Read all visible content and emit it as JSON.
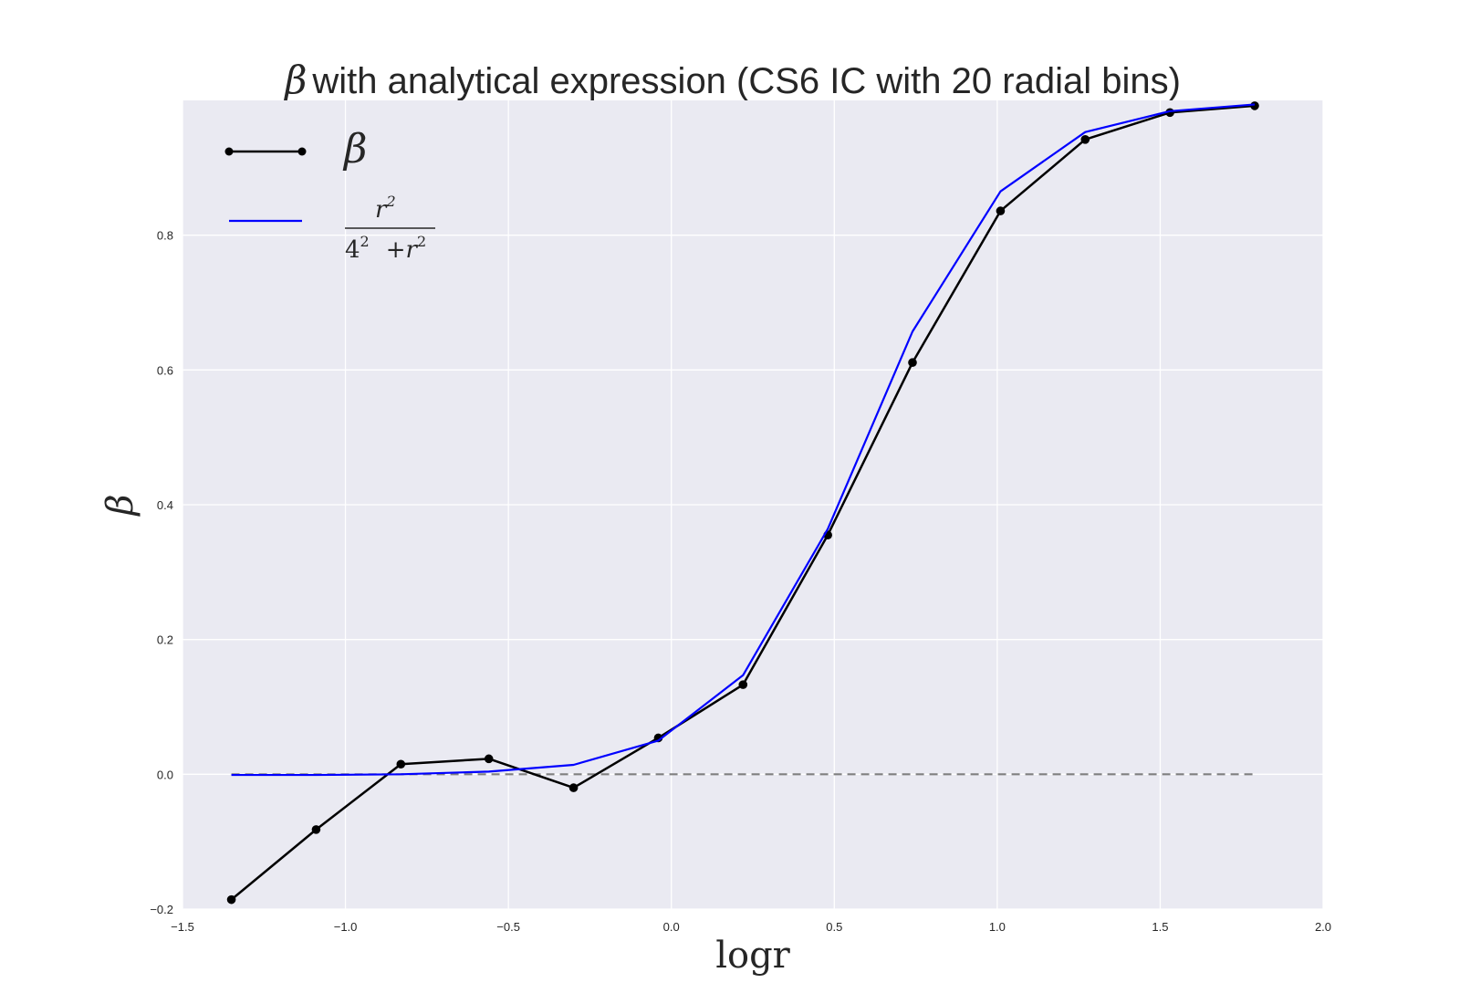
{
  "chart_data": {
    "type": "line",
    "title_symbol": "β",
    "title_text": "with analytical expression (CS6 IC with 20 radial bins)",
    "xlabel": "logr",
    "ylabel": "β",
    "xlim": [
      -1.5,
      2.0
    ],
    "ylim": [
      -0.2,
      1.0
    ],
    "x_ticks": [
      -1.5,
      -1.0,
      -0.5,
      0.0,
      0.5,
      1.0,
      1.5,
      2.0
    ],
    "x_tick_labels": [
      "−1.5",
      "−1.0",
      "−0.5",
      "0.0",
      "0.5",
      "1.0",
      "1.5",
      "2.0"
    ],
    "y_ticks": [
      -0.2,
      0.0,
      0.2,
      0.4,
      0.6,
      0.8
    ],
    "y_tick_labels": [
      "−0.2",
      "0.0",
      "0.2",
      "0.4",
      "0.6",
      "0.8"
    ],
    "grid": true,
    "legend_position": "top-left",
    "series": [
      {
        "name": "β",
        "color": "#000000",
        "marker": "circle",
        "x": [
          -1.35,
          -1.09,
          -0.83,
          -0.56,
          -0.3,
          -0.04,
          0.22,
          0.48,
          0.74,
          1.01,
          1.27,
          1.53,
          1.79
        ],
        "y": [
          -0.186,
          -0.082,
          0.015,
          0.023,
          -0.02,
          0.054,
          0.133,
          0.355,
          0.611,
          0.836,
          0.942,
          0.982,
          0.992
        ]
      },
      {
        "name": "r²/(4² + r²)",
        "color": "#0000ff",
        "marker": "none",
        "x": [
          -1.35,
          -1.09,
          -0.83,
          -0.56,
          -0.3,
          -0.04,
          0.22,
          0.48,
          0.74,
          1.01,
          1.27,
          1.53,
          1.79
        ],
        "y": [
          -0.001,
          -0.001,
          0.0,
          0.004,
          0.014,
          0.05,
          0.147,
          0.364,
          0.657,
          0.865,
          0.953,
          0.984,
          0.994
        ]
      }
    ],
    "reference_line": {
      "y": 0.0,
      "x_range": [
        -1.35,
        1.79
      ],
      "color": "#808080",
      "style": "dashed"
    },
    "legend": {
      "beta_label": "β",
      "fraction_numerator_base": "r",
      "fraction_numerator_exp": "2",
      "fraction_denominator_base": "4",
      "fraction_denominator_exp": "2",
      "fraction_denominator_plus": "+",
      "fraction_denominator_r": "r",
      "fraction_denominator_r_exp": "2"
    },
    "colors": {
      "background": "#eaeaf2",
      "grid": "#ffffff",
      "text": "#262626"
    }
  }
}
